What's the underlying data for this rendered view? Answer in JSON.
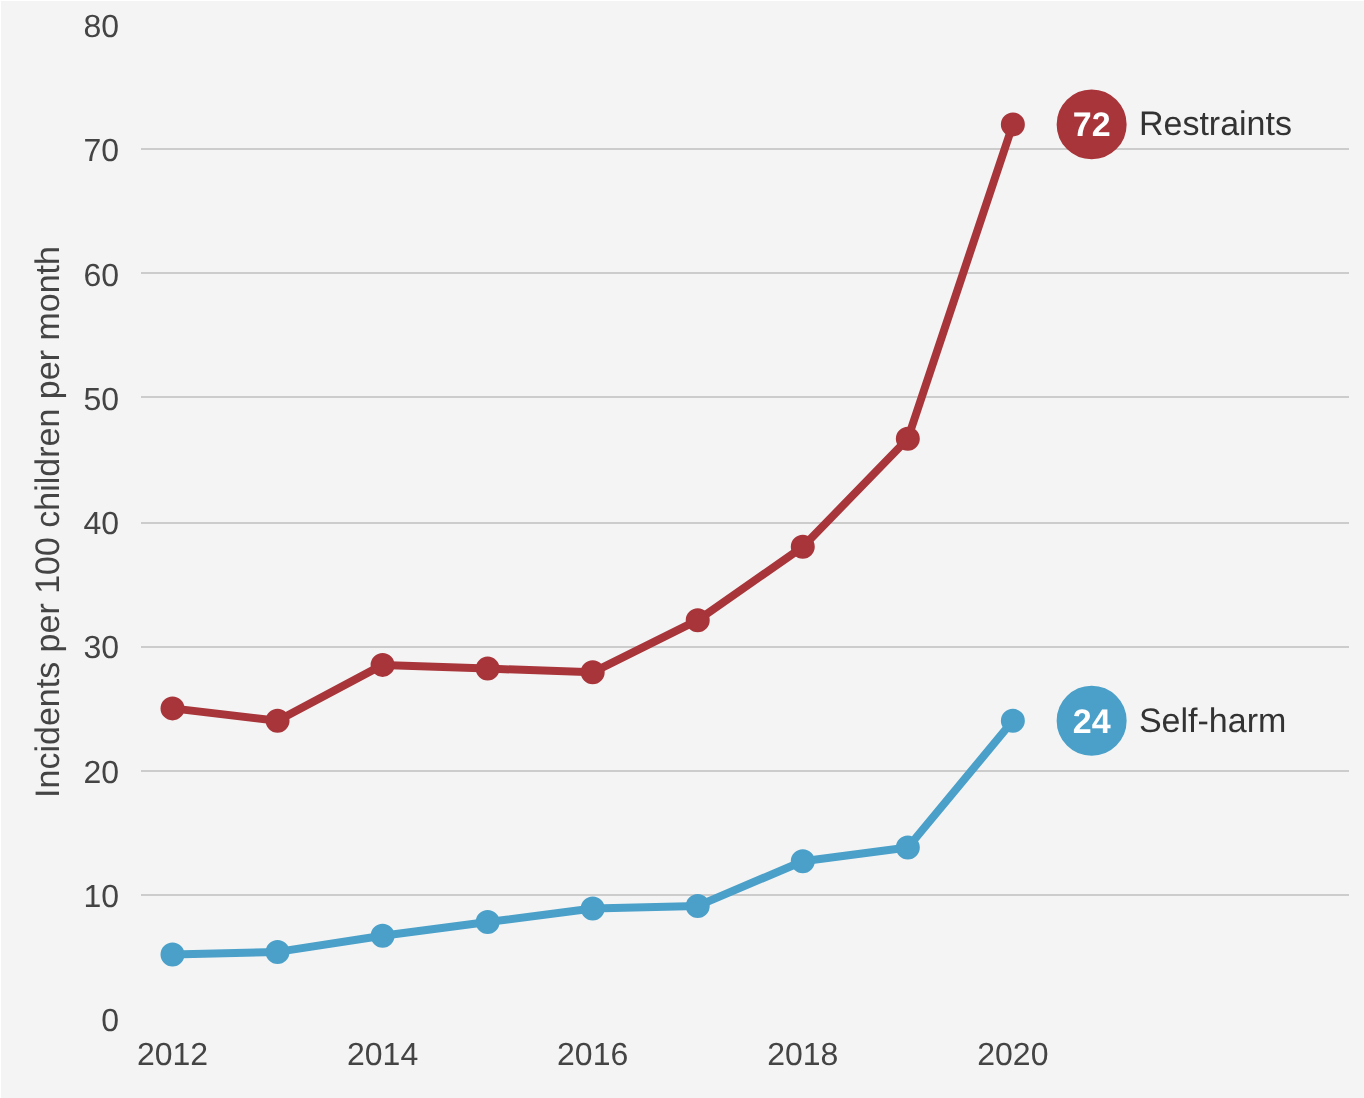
{
  "chart_data": {
    "type": "line",
    "ylabel": "Incidents per 100 children per month",
    "x": [
      2012,
      2013,
      2014,
      2015,
      2016,
      2017,
      2018,
      2019,
      2020
    ],
    "series": [
      {
        "name": "Restraints",
        "color": "#a8353a",
        "values": [
          25,
          24,
          28.5,
          28.2,
          27.9,
          32.1,
          38,
          46.7,
          72
        ],
        "value_labels": [
          null,
          null,
          null,
          null,
          null,
          null,
          null,
          null,
          "72"
        ]
      },
      {
        "name": "Self-harm",
        "color": "#4aa0c9",
        "values": [
          5.2,
          5.4,
          6.7,
          7.8,
          8.9,
          9.1,
          12.7,
          13.8,
          24
        ],
        "value_labels": [
          null,
          null,
          null,
          null,
          null,
          null,
          null,
          null,
          "24"
        ]
      }
    ],
    "xlim": [
      2011.7,
      2023.2
    ],
    "ylim": [
      0,
      80
    ],
    "xticks": [
      2012,
      2014,
      2016,
      2018,
      2020
    ],
    "yticks": [
      0,
      10,
      20,
      30,
      40,
      50,
      60,
      70,
      80
    ],
    "grid": "y",
    "marker": "circle",
    "line_style": "solid",
    "legend": "right"
  }
}
